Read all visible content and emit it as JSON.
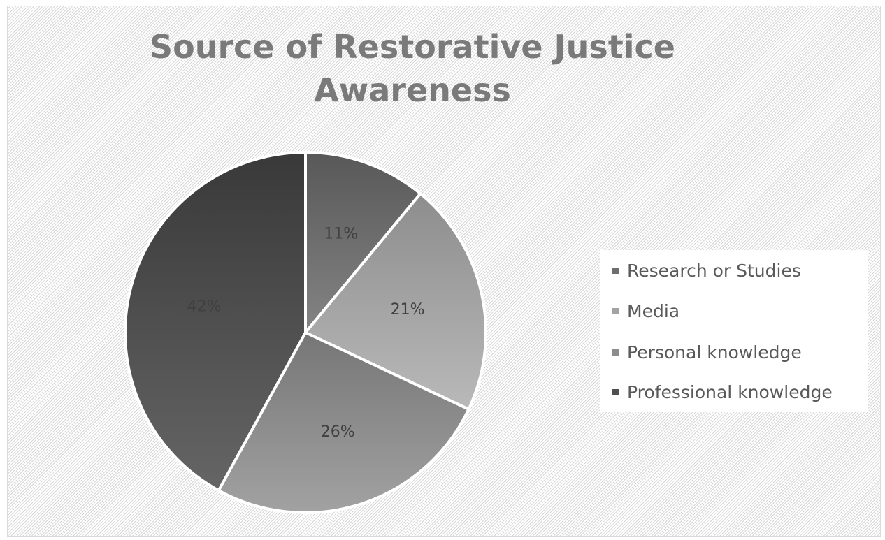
{
  "chart_data": {
    "type": "pie",
    "title": "Source of Restorative Justice Awareness",
    "title_lines": [
      "Source of Restorative Justice",
      "Awareness"
    ],
    "categories": [
      "Research or Studies",
      "Media",
      "Personal knowledge",
      "Professional knowledge"
    ],
    "values": [
      11,
      21,
      26,
      42
    ],
    "labels": [
      "11%",
      "21%",
      "26%",
      "42%"
    ],
    "colors": [
      "#6e6e6e",
      "#a3a3a3",
      "#8c8c8c",
      "#4f4f4f"
    ],
    "legend_position": "right",
    "grid": false
  }
}
